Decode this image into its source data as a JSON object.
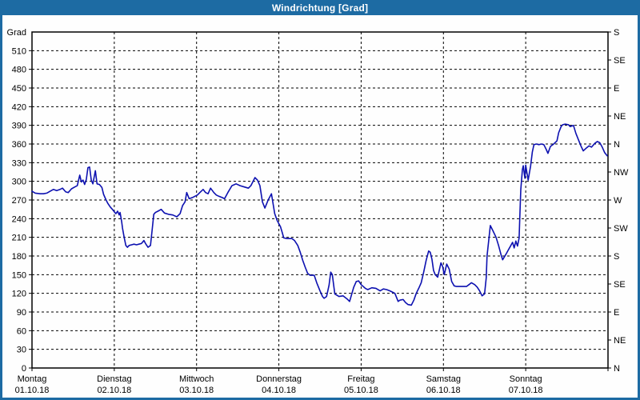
{
  "window": {
    "title": "Windrichtung [Grad]"
  },
  "colors": {
    "titlebar": "#1d6ba3",
    "frame": "#1d6ba3",
    "plot_background": "#fefefe",
    "grid": "#000000",
    "text": "#000000",
    "line": "#0d11b0"
  },
  "chart_data": {
    "type": "line",
    "title": "Windrichtung [Grad]",
    "xlabel": "",
    "ylabel": "Grad",
    "grid": "dashed, horizontal every 30 deg, vertical every day",
    "legend_position": "none",
    "y_left": {
      "label": "Grad",
      "min": 0,
      "max": 540,
      "tick_step": 30,
      "tick_labels": [
        "0",
        "30",
        "60",
        "90",
        "120",
        "150",
        "180",
        "210",
        "240",
        "270",
        "300",
        "330",
        "360",
        "390",
        "420",
        "450",
        "480",
        "510"
      ]
    },
    "y_right": {
      "unit": "compass",
      "tick_step_deg": 45,
      "labels_bottom_to_top": [
        "N",
        "NE",
        "E",
        "SE",
        "S",
        "SW",
        "W",
        "NW",
        "N",
        "NE",
        "E",
        "SE",
        "S"
      ]
    },
    "x": {
      "range_days": [
        0,
        7
      ],
      "days": [
        {
          "name": "Montag",
          "date": "01.10.18"
        },
        {
          "name": "Dienstag",
          "date": "02.10.18"
        },
        {
          "name": "Mittwoch",
          "date": "03.10.18"
        },
        {
          "name": "Donnerstag",
          "date": "04.10.18"
        },
        {
          "name": "Freitag",
          "date": "05.10.18"
        },
        {
          "name": "Samstag",
          "date": "06.10.18"
        },
        {
          "name": "Sonntag",
          "date": "07.10.18"
        }
      ]
    },
    "series": [
      {
        "name": "Windrichtung",
        "color": "#0d11b0",
        "points": [
          [
            0.0,
            284
          ],
          [
            0.04,
            281
          ],
          [
            0.1,
            280
          ],
          [
            0.14,
            280
          ],
          [
            0.18,
            281
          ],
          [
            0.22,
            284
          ],
          [
            0.26,
            287
          ],
          [
            0.3,
            285
          ],
          [
            0.34,
            287
          ],
          [
            0.37,
            289
          ],
          [
            0.41,
            283
          ],
          [
            0.44,
            282
          ],
          [
            0.48,
            288
          ],
          [
            0.52,
            291
          ],
          [
            0.55,
            293
          ],
          [
            0.58,
            310
          ],
          [
            0.6,
            299
          ],
          [
            0.62,
            302
          ],
          [
            0.64,
            295
          ],
          [
            0.66,
            303
          ],
          [
            0.68,
            322
          ],
          [
            0.7,
            323
          ],
          [
            0.72,
            302
          ],
          [
            0.74,
            296
          ],
          [
            0.77,
            317
          ],
          [
            0.79,
            296
          ],
          [
            0.82,
            295
          ],
          [
            0.85,
            290
          ],
          [
            0.87,
            279
          ],
          [
            0.9,
            270
          ],
          [
            0.92,
            265
          ],
          [
            0.95,
            259
          ],
          [
            0.97,
            256
          ],
          [
            1.0,
            251
          ],
          [
            1.02,
            248
          ],
          [
            1.04,
            252
          ],
          [
            1.06,
            246
          ],
          [
            1.07,
            250
          ],
          [
            1.09,
            235
          ],
          [
            1.1,
            225
          ],
          [
            1.12,
            210
          ],
          [
            1.14,
            197
          ],
          [
            1.16,
            194
          ],
          [
            1.18,
            197
          ],
          [
            1.21,
            198
          ],
          [
            1.24,
            199
          ],
          [
            1.27,
            198
          ],
          [
            1.3,
            199
          ],
          [
            1.33,
            200
          ],
          [
            1.36,
            205
          ],
          [
            1.38,
            200
          ],
          [
            1.41,
            194
          ],
          [
            1.44,
            197
          ],
          [
            1.46,
            222
          ],
          [
            1.48,
            247
          ],
          [
            1.5,
            250
          ],
          [
            1.53,
            252
          ],
          [
            1.57,
            255
          ],
          [
            1.61,
            249
          ],
          [
            1.66,
            247
          ],
          [
            1.71,
            246
          ],
          [
            1.76,
            243
          ],
          [
            1.8,
            248
          ],
          [
            1.83,
            261
          ],
          [
            1.86,
            267
          ],
          [
            1.88,
            282
          ],
          [
            1.91,
            272
          ],
          [
            1.95,
            274
          ],
          [
            1.98,
            276
          ],
          [
            2.01,
            278
          ],
          [
            2.04,
            282
          ],
          [
            2.08,
            287
          ],
          [
            2.11,
            282
          ],
          [
            2.14,
            280
          ],
          [
            2.17,
            289
          ],
          [
            2.21,
            282
          ],
          [
            2.24,
            278
          ],
          [
            2.27,
            276
          ],
          [
            2.31,
            274
          ],
          [
            2.34,
            272
          ],
          [
            2.38,
            282
          ],
          [
            2.43,
            293
          ],
          [
            2.48,
            296
          ],
          [
            2.53,
            293
          ],
          [
            2.58,
            291
          ],
          [
            2.63,
            289
          ],
          [
            2.66,
            293
          ],
          [
            2.71,
            306
          ],
          [
            2.74,
            302
          ],
          [
            2.77,
            293
          ],
          [
            2.8,
            267
          ],
          [
            2.83,
            257
          ],
          [
            2.87,
            270
          ],
          [
            2.91,
            280
          ],
          [
            2.95,
            248
          ],
          [
            2.98,
            237
          ],
          [
            3.02,
            227
          ],
          [
            3.04,
            218
          ],
          [
            3.06,
            209
          ],
          [
            3.1,
            208
          ],
          [
            3.13,
            208
          ],
          [
            3.16,
            208
          ],
          [
            3.19,
            205
          ],
          [
            3.23,
            197
          ],
          [
            3.26,
            186
          ],
          [
            3.29,
            173
          ],
          [
            3.32,
            162
          ],
          [
            3.35,
            152
          ],
          [
            3.38,
            149
          ],
          [
            3.41,
            149
          ],
          [
            3.43,
            149
          ],
          [
            3.46,
            137
          ],
          [
            3.5,
            124
          ],
          [
            3.53,
            115
          ],
          [
            3.55,
            112
          ],
          [
            3.58,
            115
          ],
          [
            3.61,
            133
          ],
          [
            3.63,
            154
          ],
          [
            3.65,
            150
          ],
          [
            3.68,
            119
          ],
          [
            3.73,
            115
          ],
          [
            3.78,
            116
          ],
          [
            3.83,
            111
          ],
          [
            3.86,
            107
          ],
          [
            3.91,
            130
          ],
          [
            3.94,
            139
          ],
          [
            3.97,
            140
          ],
          [
            4.0,
            134
          ],
          [
            4.05,
            128
          ],
          [
            4.08,
            126
          ],
          [
            4.13,
            129
          ],
          [
            4.18,
            128
          ],
          [
            4.23,
            124
          ],
          [
            4.27,
            127
          ],
          [
            4.31,
            126
          ],
          [
            4.35,
            124
          ],
          [
            4.38,
            122
          ],
          [
            4.41,
            120
          ],
          [
            4.45,
            107
          ],
          [
            4.47,
            109
          ],
          [
            4.51,
            110
          ],
          [
            4.54,
            105
          ],
          [
            4.57,
            102
          ],
          [
            4.61,
            101
          ],
          [
            4.64,
            109
          ],
          [
            4.67,
            120
          ],
          [
            4.7,
            128
          ],
          [
            4.73,
            137
          ],
          [
            4.76,
            154
          ],
          [
            4.79,
            173
          ],
          [
            4.82,
            188
          ],
          [
            4.84,
            186
          ],
          [
            4.86,
            175
          ],
          [
            4.88,
            157
          ],
          [
            4.9,
            150
          ],
          [
            4.93,
            146
          ],
          [
            4.97,
            169
          ],
          [
            4.99,
            163
          ],
          [
            5.01,
            150
          ],
          [
            5.04,
            167
          ],
          [
            5.07,
            159
          ],
          [
            5.1,
            139
          ],
          [
            5.13,
            132
          ],
          [
            5.16,
            131
          ],
          [
            5.2,
            131
          ],
          [
            5.24,
            131
          ],
          [
            5.28,
            131
          ],
          [
            5.31,
            134
          ],
          [
            5.34,
            137
          ],
          [
            5.38,
            134
          ],
          [
            5.41,
            130
          ],
          [
            5.44,
            124
          ],
          [
            5.47,
            116
          ],
          [
            5.5,
            119
          ],
          [
            5.52,
            145
          ],
          [
            5.53,
            180
          ],
          [
            5.55,
            205
          ],
          [
            5.57,
            229
          ],
          [
            5.6,
            221
          ],
          [
            5.64,
            210
          ],
          [
            5.67,
            197
          ],
          [
            5.7,
            182
          ],
          [
            5.72,
            174
          ],
          [
            5.76,
            183
          ],
          [
            5.79,
            190
          ],
          [
            5.82,
            197
          ],
          [
            5.84,
            202
          ],
          [
            5.86,
            193
          ],
          [
            5.88,
            204
          ],
          [
            5.9,
            196
          ],
          [
            5.92,
            209
          ],
          [
            5.93,
            248
          ],
          [
            5.94,
            287
          ],
          [
            5.96,
            319
          ],
          [
            5.97,
            325
          ],
          [
            5.99,
            305
          ],
          [
            6.0,
            326
          ],
          [
            6.03,
            302
          ],
          [
            6.06,
            325
          ],
          [
            6.08,
            347
          ],
          [
            6.1,
            359
          ],
          [
            6.13,
            360
          ],
          [
            6.16,
            359
          ],
          [
            6.19,
            360
          ],
          [
            6.22,
            359
          ],
          [
            6.25,
            351
          ],
          [
            6.27,
            345
          ],
          [
            6.3,
            356
          ],
          [
            6.34,
            360
          ],
          [
            6.38,
            365
          ],
          [
            6.4,
            378
          ],
          [
            6.43,
            388
          ],
          [
            6.45,
            391
          ],
          [
            6.48,
            392
          ],
          [
            6.52,
            391
          ],
          [
            6.54,
            388
          ],
          [
            6.58,
            390
          ],
          [
            6.61,
            377
          ],
          [
            6.64,
            367
          ],
          [
            6.67,
            357
          ],
          [
            6.7,
            349
          ],
          [
            6.74,
            354
          ],
          [
            6.77,
            357
          ],
          [
            6.8,
            355
          ],
          [
            6.84,
            361
          ],
          [
            6.87,
            364
          ],
          [
            6.9,
            362
          ],
          [
            6.93,
            355
          ],
          [
            6.96,
            346
          ],
          [
            6.99,
            341
          ]
        ]
      }
    ]
  }
}
